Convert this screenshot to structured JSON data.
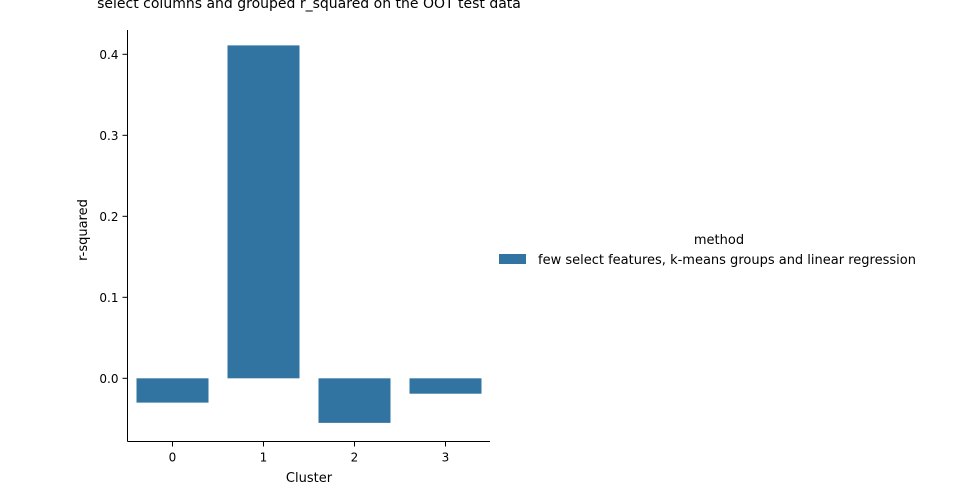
{
  "chart_data": {
    "type": "bar",
    "title": "select columns and grouped r_squared on the OOT test data",
    "xlabel": "Cluster",
    "ylabel": "r-squared",
    "categories": [
      "0",
      "1",
      "2",
      "3"
    ],
    "series": [
      {
        "name": "few select features, k-means groups and linear regression",
        "values": [
          -0.03,
          0.411,
          -0.055,
          -0.019
        ],
        "color": "#3274a1"
      }
    ],
    "ylim": [
      -0.078,
      0.43
    ],
    "yticks": [
      0.0,
      0.1,
      0.2,
      0.3,
      0.4
    ],
    "ytick_labels": [
      "0.0",
      "0.1",
      "0.2",
      "0.3",
      "0.4"
    ],
    "grid": false,
    "legend": {
      "title": "method",
      "placement": "right-outside"
    }
  }
}
